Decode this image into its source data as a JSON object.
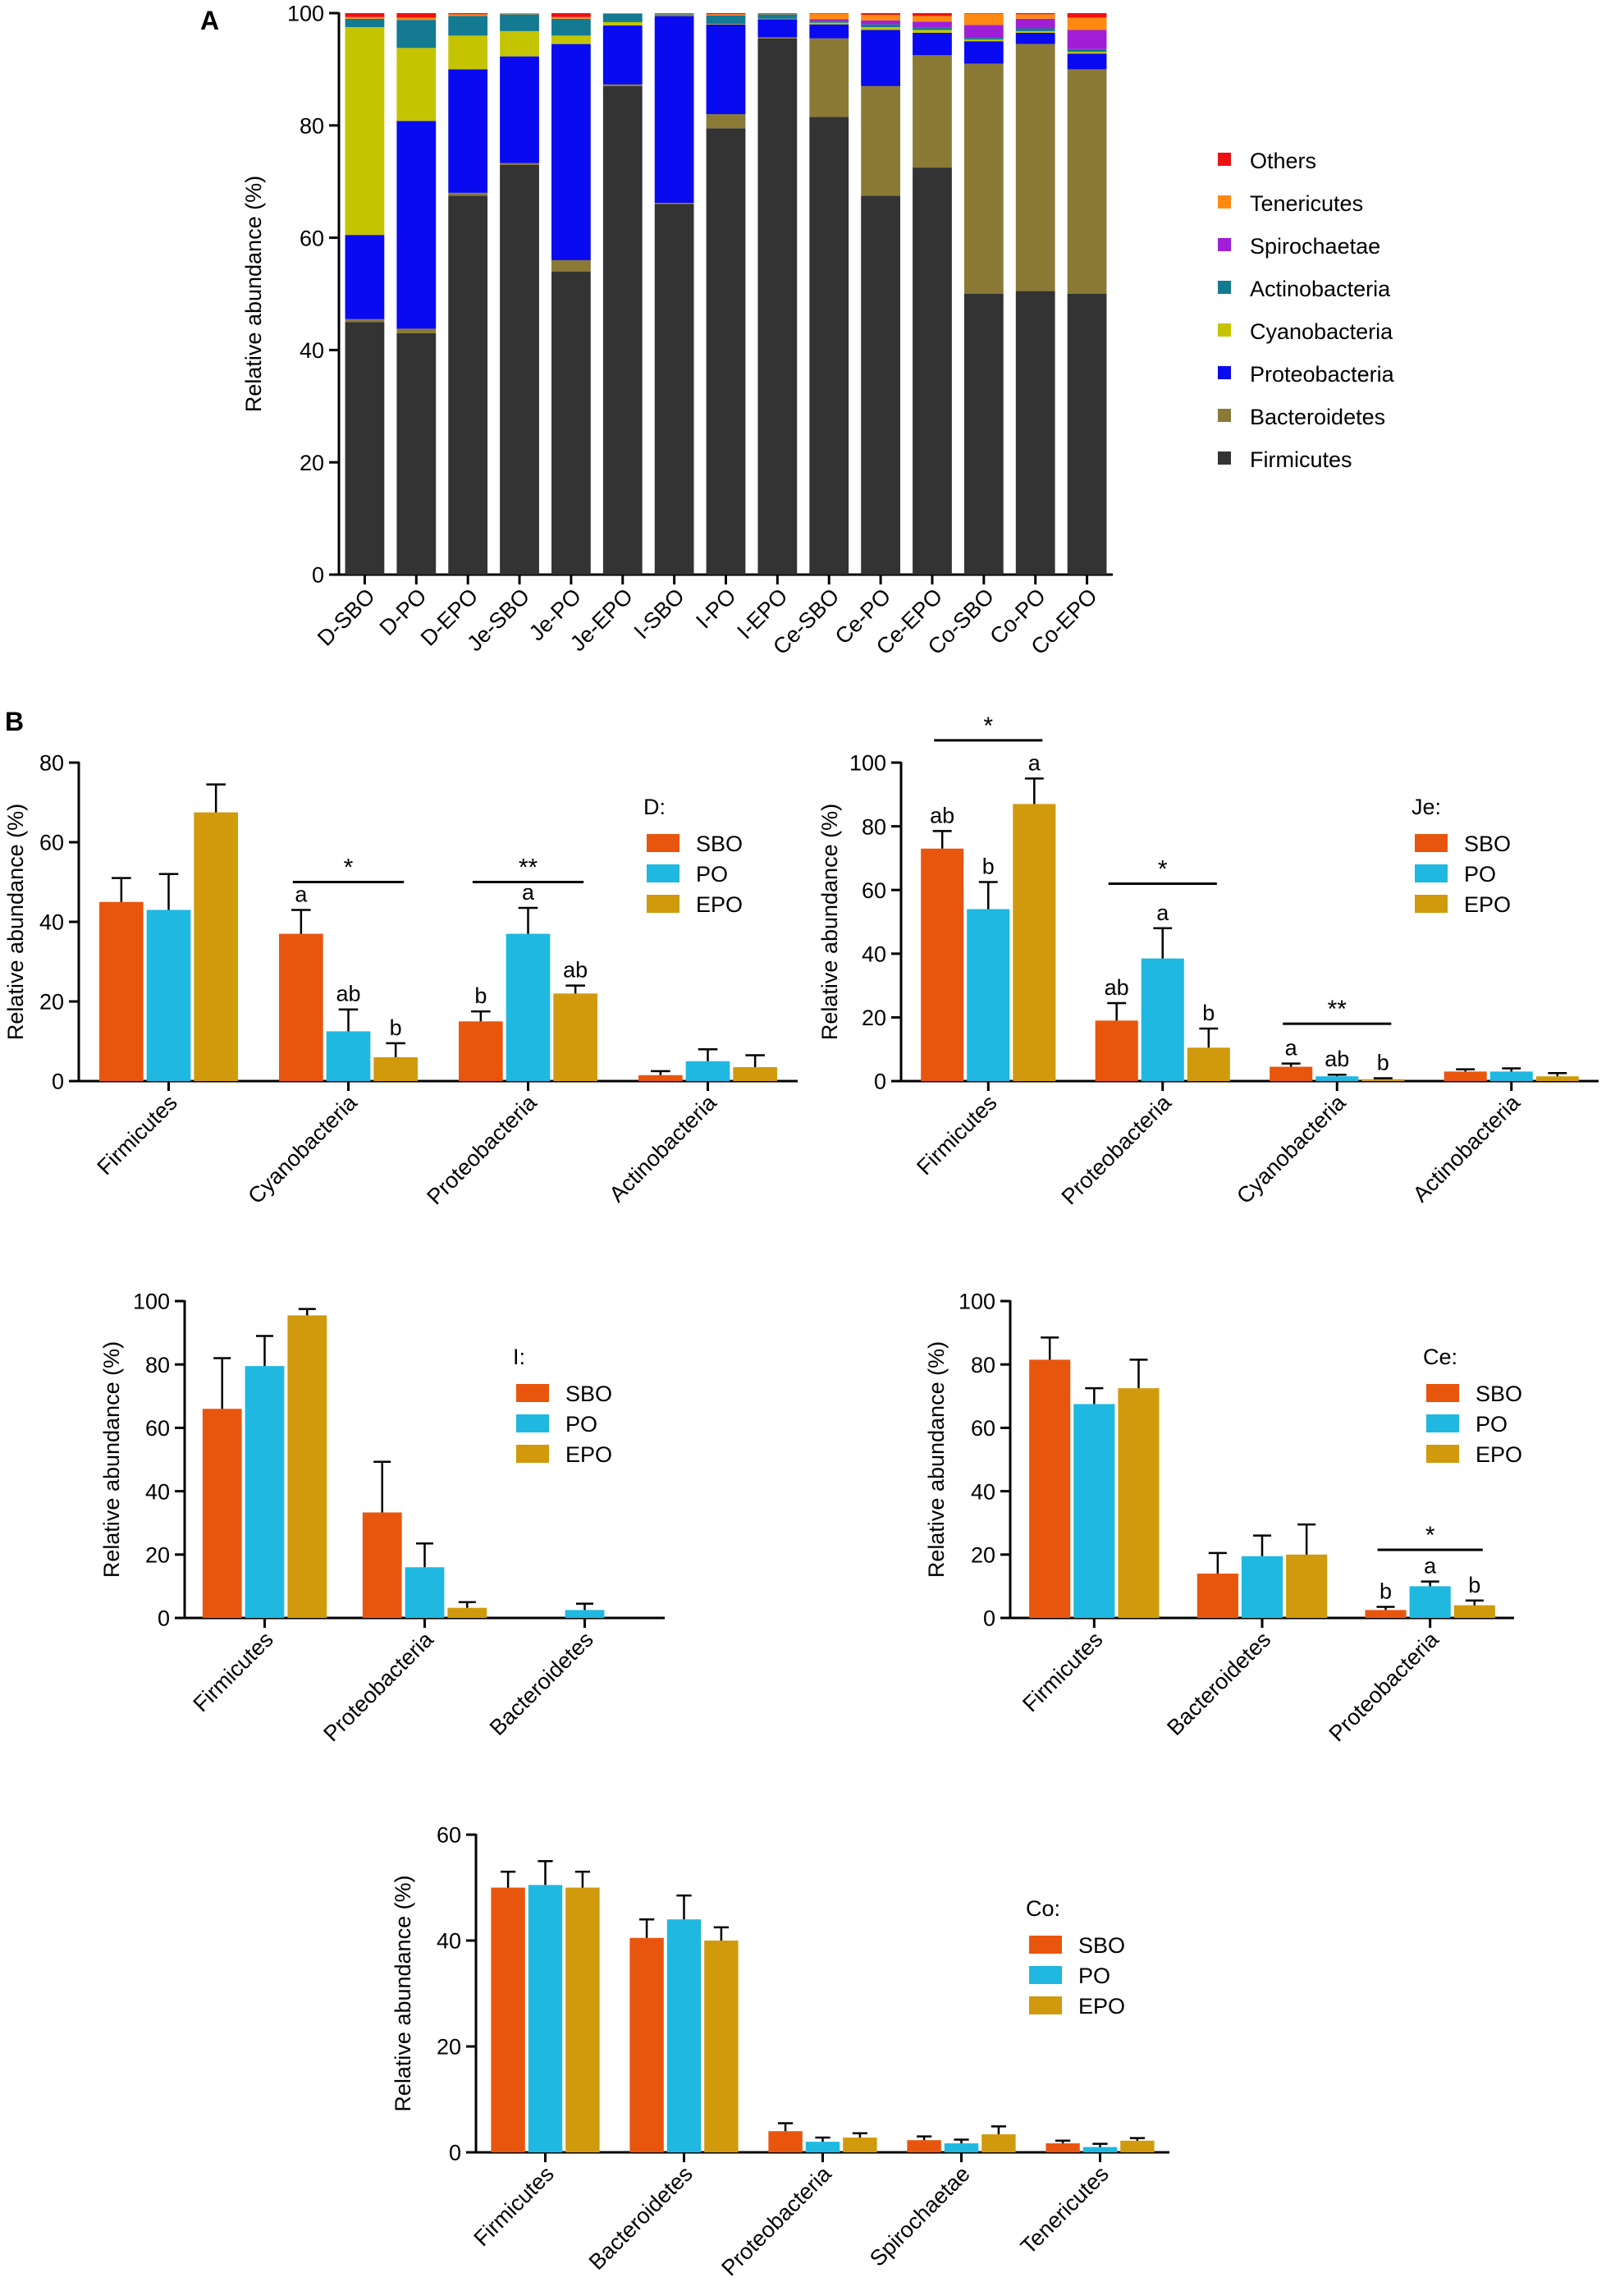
{
  "figure_labels": {
    "a": "A",
    "b": "B"
  },
  "colors": {
    "Firmicutes": "#333333",
    "Bacteroidetes": "#8a7a35",
    "Proteobacteria": "#0a0af0",
    "Cyanobacteria": "#c4c400",
    "Actinobacteria": "#137a92",
    "Spirochaetae": "#a01ed6",
    "Tenericutes": "#ff8a12",
    "Others": "#ee1111",
    "SBO": "#e8560e",
    "PO": "#1fb8e0",
    "EPO": "#d19a0c"
  },
  "chart_data": [
    {
      "id": "A",
      "type": "bar",
      "stacked": true,
      "title": "",
      "xlabel": "",
      "ylabel": "Relative abundance (%)",
      "ylim": [
        0,
        100
      ],
      "yticks": [
        0,
        20,
        40,
        60,
        80,
        100
      ],
      "categories": [
        "D-SBO",
        "D-PO",
        "D-EPO",
        "Je-SBO",
        "Je-PO",
        "Je-EPO",
        "I-SBO",
        "I-PO",
        "I-EPO",
        "Ce-SBO",
        "Ce-PO",
        "Ce-EPO",
        "Co-SBO",
        "Co-PO",
        "Co-EPO"
      ],
      "legend_order": [
        "Others",
        "Tenericutes",
        "Spirochaetae",
        "Actinobacteria",
        "Cyanobacteria",
        "Proteobacteria",
        "Bacteroidetes",
        "Firmicutes"
      ],
      "series": [
        {
          "name": "Firmicutes",
          "values": [
            45,
            43,
            67.5,
            73,
            54,
            87,
            66,
            79.5,
            95.5,
            81.5,
            67.5,
            72.5,
            50,
            50.5,
            50
          ]
        },
        {
          "name": "Bacteroidetes",
          "values": [
            0.5,
            0.8,
            0.5,
            0.3,
            2,
            0.3,
            0.2,
            2.5,
            0.2,
            14,
            19.5,
            20,
            41,
            44,
            40
          ]
        },
        {
          "name": "Proteobacteria",
          "values": [
            15,
            37,
            22,
            19,
            38.5,
            10.5,
            33.3,
            16,
            3.2,
            2.5,
            10,
            4,
            4,
            2,
            2.8
          ]
        },
        {
          "name": "Cyanobacteria",
          "values": [
            37,
            13,
            6,
            4.5,
            1.5,
            0.6,
            0.1,
            0.1,
            0.1,
            0.3,
            0.5,
            0.5,
            0.3,
            0.3,
            0.3
          ]
        },
        {
          "name": "Actinobacteria",
          "values": [
            1.5,
            5,
            3.5,
            3,
            3,
            1.5,
            0.2,
            1.5,
            0.8,
            0.3,
            0.5,
            0.5,
            0.3,
            0.5,
            0.5
          ]
        },
        {
          "name": "Spirochaetae",
          "values": [
            0,
            0,
            0,
            0,
            0,
            0,
            0,
            0,
            0,
            0.3,
            0.7,
            1,
            2.3,
            1.7,
            3.4
          ]
        },
        {
          "name": "Tenericutes",
          "values": [
            0.3,
            0.4,
            0.3,
            0.2,
            0.3,
            0.1,
            0.1,
            0.2,
            0.1,
            1,
            1,
            1,
            2,
            0.8,
            2.2
          ]
        },
        {
          "name": "Others",
          "values": [
            0.7,
            0.8,
            0.2,
            0,
            0.7,
            0,
            0.1,
            0.2,
            0.1,
            0.1,
            0.3,
            0.5,
            0.1,
            0.2,
            0.8
          ]
        }
      ]
    },
    {
      "id": "D",
      "type": "bar",
      "title": "",
      "ylabel": "Relative abundance (%)",
      "ylim": [
        0,
        80
      ],
      "yticks": [
        0,
        20,
        40,
        60,
        80
      ],
      "legend_title": "D:",
      "legend_position": "top-right",
      "categories": [
        "Firmicutes",
        "Cyanobacteria",
        "Proteobacteria",
        "Actinobacteria"
      ],
      "series": [
        {
          "name": "SBO",
          "values": [
            45,
            37,
            15,
            1.5
          ],
          "errors": [
            6,
            6,
            2.5,
            1
          ],
          "letters": [
            "",
            "a",
            "b",
            ""
          ]
        },
        {
          "name": "PO",
          "values": [
            43,
            12.5,
            37,
            5
          ],
          "errors": [
            9,
            5.5,
            6.5,
            3
          ],
          "letters": [
            "",
            "ab",
            "a",
            ""
          ]
        },
        {
          "name": "EPO",
          "values": [
            67.5,
            6,
            22,
            3.5
          ],
          "errors": [
            7,
            3.5,
            2,
            3
          ],
          "letters": [
            "",
            "b",
            "ab",
            ""
          ]
        }
      ],
      "significance": [
        {
          "category": "Cyanobacteria",
          "label": "*",
          "y": 50
        },
        {
          "category": "Proteobacteria",
          "label": "**",
          "y": 50
        }
      ]
    },
    {
      "id": "Je",
      "type": "bar",
      "title": "",
      "ylabel": "Relative abundance (%)",
      "ylim": [
        0,
        100
      ],
      "yticks": [
        0,
        20,
        40,
        60,
        80,
        100
      ],
      "legend_title": "Je:",
      "legend_position": "top-right",
      "categories": [
        "Firmicutes",
        "Proteobacteria",
        "Cyanobacteria",
        "Actinobacteria"
      ],
      "series": [
        {
          "name": "SBO",
          "values": [
            73,
            19,
            4.5,
            3
          ],
          "errors": [
            5.5,
            5.5,
            1,
            0.7
          ],
          "letters": [
            "ab",
            "ab",
            "a",
            ""
          ]
        },
        {
          "name": "PO",
          "values": [
            54,
            38.5,
            1.5,
            3
          ],
          "errors": [
            8.5,
            9.5,
            0.5,
            1
          ],
          "letters": [
            "b",
            "a",
            "ab",
            ""
          ]
        },
        {
          "name": "EPO",
          "values": [
            87,
            10.5,
            0.6,
            1.5
          ],
          "errors": [
            8,
            6,
            0.3,
            1
          ],
          "letters": [
            "a",
            "b",
            "b",
            ""
          ]
        }
      ],
      "significance": [
        {
          "category": "Firmicutes",
          "label": "*",
          "y": 107
        },
        {
          "category": "Proteobacteria",
          "label": "*",
          "y": 62
        },
        {
          "category": "Cyanobacteria",
          "label": "**",
          "y": 18
        }
      ]
    },
    {
      "id": "I",
      "type": "bar",
      "title": "",
      "ylabel": "Relative abundance (%)",
      "ylim": [
        0,
        100
      ],
      "yticks": [
        0,
        20,
        40,
        60,
        80,
        100
      ],
      "legend_title": "I:",
      "legend_position": "top-right",
      "categories": [
        "Firmicutes",
        "Proteobacteria",
        "Bacteroidetes"
      ],
      "series": [
        {
          "name": "SBO",
          "values": [
            66,
            33.3,
            0
          ],
          "errors": [
            16,
            16,
            0
          ],
          "letters": [
            "",
            "",
            ""
          ]
        },
        {
          "name": "PO",
          "values": [
            79.5,
            16,
            2.5
          ],
          "errors": [
            9.5,
            7.5,
            2
          ],
          "letters": [
            "",
            "",
            ""
          ]
        },
        {
          "name": "EPO",
          "values": [
            95.5,
            3.2,
            0
          ],
          "errors": [
            2,
            1.8,
            0
          ],
          "letters": [
            "",
            "",
            ""
          ]
        }
      ],
      "significance": []
    },
    {
      "id": "Ce",
      "type": "bar",
      "title": "",
      "ylabel": "Relative abundance (%)",
      "ylim": [
        0,
        100
      ],
      "yticks": [
        0,
        20,
        40,
        60,
        80,
        100
      ],
      "legend_title": "Ce:",
      "legend_position": "top-right",
      "categories": [
        "Firmicutes",
        "Bacteroidetes",
        "Proteobacteria"
      ],
      "series": [
        {
          "name": "SBO",
          "values": [
            81.5,
            14,
            2.5
          ],
          "errors": [
            7,
            6.5,
            1
          ],
          "letters": [
            "",
            "",
            "b"
          ]
        },
        {
          "name": "PO",
          "values": [
            67.5,
            19.5,
            10
          ],
          "errors": [
            5,
            6.5,
            1.5
          ],
          "letters": [
            "",
            "",
            "a"
          ]
        },
        {
          "name": "EPO",
          "values": [
            72.5,
            20,
            4
          ],
          "errors": [
            9,
            9.5,
            1.5
          ],
          "letters": [
            "",
            "",
            "b"
          ]
        }
      ],
      "significance": [
        {
          "category": "Proteobacteria",
          "label": "*",
          "y": 21.5
        }
      ]
    },
    {
      "id": "Co",
      "type": "bar",
      "title": "",
      "ylabel": "Relative abundance (%)",
      "ylim": [
        0,
        60
      ],
      "yticks": [
        0,
        20,
        40,
        60
      ],
      "legend_title": "Co:",
      "legend_position": "right",
      "categories": [
        "Firmicutes",
        "Bacteroidetes",
        "Proteobacteria",
        "Spirochaetae",
        "Tenericutes"
      ],
      "series": [
        {
          "name": "SBO",
          "values": [
            50,
            40.5,
            4,
            2.3,
            1.7
          ],
          "errors": [
            3,
            3.5,
            1.5,
            0.7,
            0.5
          ],
          "letters": [
            "",
            "",
            "",
            "",
            ""
          ]
        },
        {
          "name": "PO",
          "values": [
            50.5,
            44,
            2,
            1.7,
            1
          ],
          "errors": [
            4.5,
            4.5,
            0.8,
            0.7,
            0.6
          ],
          "letters": [
            "",
            "",
            "",
            "",
            ""
          ]
        },
        {
          "name": "EPO",
          "values": [
            50,
            40,
            2.8,
            3.4,
            2.2
          ],
          "errors": [
            3,
            2.5,
            0.8,
            1.5,
            0.5
          ],
          "letters": [
            "",
            "",
            "",
            "",
            ""
          ]
        }
      ],
      "significance": []
    }
  ]
}
